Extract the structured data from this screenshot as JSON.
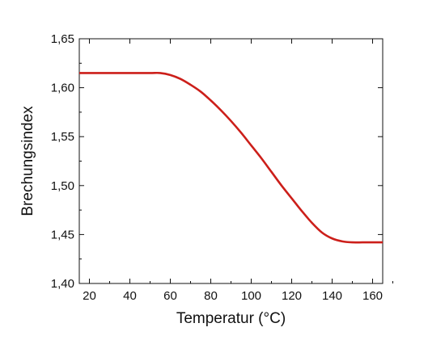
{
  "chart_data": {
    "type": "line",
    "title": "",
    "xlabel": "Temperatur (°C)",
    "ylabel": "Brechungsindex",
    "xlim": [
      15,
      165
    ],
    "ylim": [
      1.4,
      1.65
    ],
    "x_ticks": [
      20,
      40,
      60,
      80,
      100,
      120,
      140,
      160
    ],
    "x_tick_labels": [
      "20",
      "40",
      "60",
      "80",
      "100",
      "120",
      "140",
      "160"
    ],
    "y_ticks": [
      1.4,
      1.45,
      1.5,
      1.55,
      1.6,
      1.65
    ],
    "y_tick_labels": [
      "1,40",
      "1,45",
      "1,50",
      "1,55",
      "1,60",
      "1,65"
    ],
    "grid": false,
    "legend": "none",
    "series": [
      {
        "color": "#cc1f1a",
        "x": [
          15,
          20,
          30,
          40,
          50,
          55,
          60,
          65,
          70,
          75,
          80,
          85,
          90,
          95,
          100,
          105,
          110,
          115,
          120,
          125,
          130,
          135,
          140,
          145,
          150,
          155,
          160,
          165
        ],
        "y": [
          1.615,
          1.615,
          1.615,
          1.615,
          1.615,
          1.615,
          1.613,
          1.609,
          1.603,
          1.596,
          1.587,
          1.577,
          1.566,
          1.554,
          1.541,
          1.528,
          1.514,
          1.5,
          1.487,
          1.474,
          1.462,
          1.452,
          1.446,
          1.443,
          1.442,
          1.442,
          1.442,
          1.442
        ]
      }
    ]
  }
}
